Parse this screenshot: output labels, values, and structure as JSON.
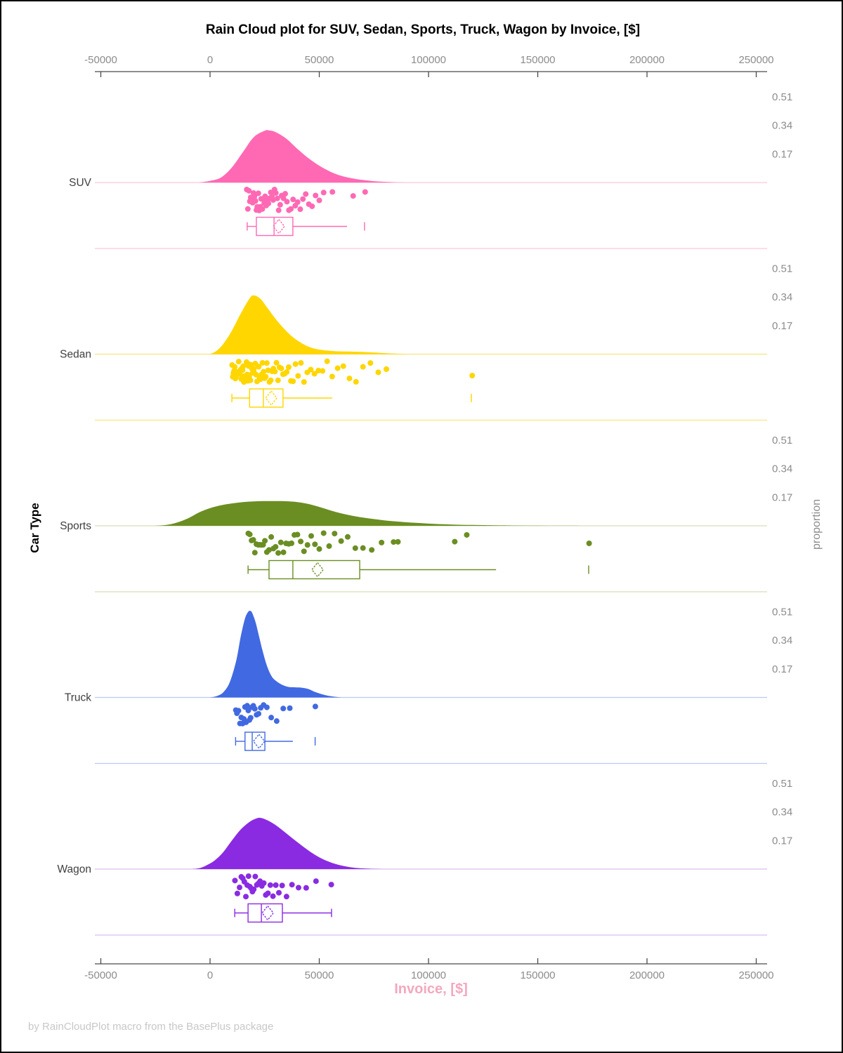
{
  "title": "Rain Cloud plot for SUV, Sedan, Sports, Truck, Wagon by Invoice, [$]",
  "footer": "by RainCloudPlot macro from the BasePlus package",
  "axes": {
    "x_label": "Invoice, [$]",
    "y_label_left": "Car Type",
    "y_label_right": "proportion"
  },
  "colors": {
    "title": "#000000",
    "x_label": "#f3a8be",
    "tick_label": "#8c8c8c",
    "axis_line": "#4a4a4a",
    "category_label": "#3f3f3f",
    "proportion_label": "#8c8c8c",
    "footer": "#c8c8c8"
  },
  "chart_data": {
    "type": "raincloud (half-violin density + jittered strip points + box plot per category)",
    "x_axis": {
      "ticks": [
        -50000,
        0,
        50000,
        100000,
        150000,
        200000,
        250000
      ],
      "range": [
        -52700,
        255000
      ]
    },
    "proportion_ticks": [
      0.51,
      0.34,
      0.17
    ],
    "categories": [
      "SUV",
      "Sedan",
      "Sports",
      "Truck",
      "Wagon"
    ],
    "series": [
      {
        "name": "SUV",
        "color": "#ff69b4",
        "light_color": "#f9c6de",
        "density": [
          [
            -5000,
            0
          ],
          [
            0,
            0.01
          ],
          [
            5000,
            0.03
          ],
          [
            10000,
            0.09
          ],
          [
            15000,
            0.18
          ],
          [
            20000,
            0.27
          ],
          [
            25000,
            0.308
          ],
          [
            27000,
            0.31
          ],
          [
            30000,
            0.3
          ],
          [
            35000,
            0.26
          ],
          [
            40000,
            0.2
          ],
          [
            45000,
            0.145
          ],
          [
            50000,
            0.1
          ],
          [
            55000,
            0.065
          ],
          [
            60000,
            0.04
          ],
          [
            65000,
            0.025
          ],
          [
            70000,
            0.015
          ],
          [
            75000,
            0.008
          ],
          [
            80000,
            0.004
          ],
          [
            85000,
            0.001
          ],
          [
            90000,
            0
          ]
        ],
        "box": {
          "min": 17000,
          "q1": 21200,
          "median": 29300,
          "mean": 31500,
          "q3": 37900,
          "max": 62700,
          "outliers": [
            70700
          ],
          "max_cap": false
        },
        "points": [
          16800,
          17300,
          17800,
          18200,
          18600,
          19100,
          19500,
          19900,
          20300,
          20800,
          21200,
          21600,
          22100,
          22500,
          23000,
          23400,
          23900,
          24300,
          24800,
          25200,
          25700,
          26200,
          26700,
          27200,
          27800,
          28300,
          28900,
          29500,
          30100,
          30800,
          31400,
          32100,
          32800,
          33600,
          34400,
          35200,
          36100,
          37000,
          38000,
          39000,
          40100,
          41300,
          42500,
          43800,
          45200,
          46700,
          48300,
          50000,
          52000,
          56000,
          65500,
          71000
        ]
      },
      {
        "name": "Sedan",
        "color": "#ffd600",
        "light_color": "#f6e385",
        "density": [
          [
            0,
            0
          ],
          [
            3000,
            0.02
          ],
          [
            6000,
            0.06
          ],
          [
            10000,
            0.14
          ],
          [
            14000,
            0.24
          ],
          [
            18000,
            0.33
          ],
          [
            20000,
            0.35
          ],
          [
            23000,
            0.33
          ],
          [
            26000,
            0.28
          ],
          [
            30000,
            0.21
          ],
          [
            34000,
            0.15
          ],
          [
            38000,
            0.1
          ],
          [
            42000,
            0.065
          ],
          [
            46000,
            0.04
          ],
          [
            50000,
            0.027
          ],
          [
            55000,
            0.02
          ],
          [
            60000,
            0.016
          ],
          [
            65000,
            0.015
          ],
          [
            70000,
            0.013
          ],
          [
            75000,
            0.01
          ],
          [
            80000,
            0.006
          ],
          [
            85000,
            0.003
          ],
          [
            90000,
            0
          ]
        ],
        "box": {
          "min": 10000,
          "q1": 18100,
          "median": 24400,
          "mean": 28000,
          "q3": 33400,
          "max": 55900,
          "outliers": [
            119600
          ],
          "max_cap": false
        },
        "points": [
          10100,
          10400,
          10700,
          11000,
          11300,
          11600,
          11900,
          12200,
          12500,
          12800,
          13100,
          13400,
          13700,
          14000,
          14300,
          14600,
          14900,
          15200,
          15500,
          15800,
          16100,
          16400,
          16700,
          17000,
          17300,
          17600,
          17900,
          18200,
          18500,
          18800,
          19100,
          19400,
          19700,
          20000,
          20300,
          20700,
          21100,
          21500,
          21900,
          22300,
          22700,
          23100,
          23500,
          24000,
          24500,
          25000,
          25500,
          26000,
          26600,
          27200,
          27800,
          28400,
          29000,
          29700,
          30400,
          31100,
          31800,
          32600,
          33400,
          34200,
          35100,
          36000,
          37000,
          38000,
          39100,
          40300,
          41600,
          43000,
          44500,
          46100,
          47800,
          49600,
          51500,
          53600,
          55900,
          58400,
          61000,
          63800,
          66800,
          70000,
          73400,
          77000,
          80700,
          120000
        ]
      },
      {
        "name": "Sports",
        "color": "#6b8e23",
        "light_color": "#d5dfb8",
        "density": [
          [
            -25000,
            0
          ],
          [
            -20000,
            0.005
          ],
          [
            -15000,
            0.02
          ],
          [
            -10000,
            0.045
          ],
          [
            -5000,
            0.08
          ],
          [
            0,
            0.105
          ],
          [
            5000,
            0.122
          ],
          [
            10000,
            0.133
          ],
          [
            15000,
            0.141
          ],
          [
            20000,
            0.145
          ],
          [
            25000,
            0.147
          ],
          [
            30000,
            0.147
          ],
          [
            35000,
            0.146
          ],
          [
            40000,
            0.141
          ],
          [
            45000,
            0.13
          ],
          [
            50000,
            0.112
          ],
          [
            55000,
            0.092
          ],
          [
            60000,
            0.074
          ],
          [
            65000,
            0.06
          ],
          [
            70000,
            0.049
          ],
          [
            75000,
            0.04
          ],
          [
            80000,
            0.032
          ],
          [
            85000,
            0.026
          ],
          [
            90000,
            0.021
          ],
          [
            95000,
            0.017
          ],
          [
            100000,
            0.013
          ],
          [
            105000,
            0.01
          ],
          [
            110000,
            0.008
          ],
          [
            115000,
            0.006
          ],
          [
            120000,
            0.005
          ],
          [
            125000,
            0.004
          ],
          [
            130000,
            0.003
          ],
          [
            140000,
            0.0015
          ],
          [
            150000,
            0.0008
          ],
          [
            160000,
            0.0003
          ],
          [
            170000,
            0
          ]
        ],
        "box": {
          "min": 17400,
          "q1": 27000,
          "median": 37900,
          "mean": 49200,
          "q3": 68500,
          "max": 130900,
          "outliers": [
            173300
          ],
          "max_cap": false
        },
        "points": [
          17500,
          18200,
          19000,
          19800,
          20500,
          21200,
          22000,
          22800,
          23500,
          24300,
          25100,
          26000,
          27000,
          28000,
          29000,
          30000,
          31200,
          32400,
          33600,
          34800,
          36000,
          37300,
          38600,
          40000,
          41500,
          43000,
          44600,
          46300,
          48000,
          50000,
          52000,
          54500,
          57000,
          60000,
          63000,
          66500,
          70000,
          74000,
          78500,
          84000,
          86000,
          112000,
          117500,
          173500
        ]
      },
      {
        "name": "Truck",
        "color": "#4169e1",
        "light_color": "#bccbf0",
        "density": [
          [
            0,
            0
          ],
          [
            3000,
            0.008
          ],
          [
            6000,
            0.03
          ],
          [
            9000,
            0.09
          ],
          [
            12000,
            0.22
          ],
          [
            14000,
            0.36
          ],
          [
            16000,
            0.47
          ],
          [
            17500,
            0.51
          ],
          [
            18300,
            0.515
          ],
          [
            19000,
            0.51
          ],
          [
            20000,
            0.48
          ],
          [
            21000,
            0.44
          ],
          [
            22500,
            0.36
          ],
          [
            24000,
            0.28
          ],
          [
            26000,
            0.19
          ],
          [
            28000,
            0.13
          ],
          [
            30000,
            0.1
          ],
          [
            33000,
            0.075
          ],
          [
            36000,
            0.062
          ],
          [
            39000,
            0.06
          ],
          [
            42000,
            0.058
          ],
          [
            45000,
            0.05
          ],
          [
            48000,
            0.033
          ],
          [
            51000,
            0.02
          ],
          [
            54000,
            0.01
          ],
          [
            57000,
            0.004
          ],
          [
            60000,
            0
          ]
        ],
        "box": {
          "min": 11700,
          "q1": 16000,
          "median": 19300,
          "mean": 22400,
          "q3": 25100,
          "max": 37900,
          "outliers": [
            48100
          ],
          "max_cap": false
        },
        "points": [
          11800,
          12300,
          13000,
          13700,
          14300,
          14900,
          15500,
          16000,
          16500,
          17000,
          17500,
          18000,
          18600,
          19200,
          19800,
          20500,
          21300,
          22200,
          23200,
          24500,
          26000,
          28000,
          30500,
          33500,
          36500,
          48200
        ]
      },
      {
        "name": "Wagon",
        "color": "#8a2be2",
        "light_color": "#d9bcf0",
        "density": [
          [
            -8000,
            0
          ],
          [
            -5000,
            0.005
          ],
          [
            -2000,
            0.02
          ],
          [
            2000,
            0.05
          ],
          [
            6000,
            0.1
          ],
          [
            10000,
            0.17
          ],
          [
            14000,
            0.235
          ],
          [
            18000,
            0.28
          ],
          [
            21000,
            0.3
          ],
          [
            23000,
            0.305
          ],
          [
            26000,
            0.292
          ],
          [
            30000,
            0.262
          ],
          [
            34000,
            0.222
          ],
          [
            38000,
            0.18
          ],
          [
            42000,
            0.14
          ],
          [
            46000,
            0.102
          ],
          [
            50000,
            0.07
          ],
          [
            54000,
            0.046
          ],
          [
            58000,
            0.028
          ],
          [
            62000,
            0.016
          ],
          [
            66000,
            0.008
          ],
          [
            70000,
            0.004
          ],
          [
            75000,
            0.001
          ],
          [
            80000,
            0
          ]
        ],
        "box": {
          "min": 11300,
          "q1": 17400,
          "median": 23500,
          "mean": 26400,
          "q3": 33100,
          "max": 55600,
          "outliers": [],
          "max_cap": true
        },
        "points": [
          11400,
          12500,
          13500,
          14300,
          15000,
          15700,
          16400,
          17000,
          17600,
          18200,
          18800,
          19400,
          20000,
          20700,
          21400,
          22100,
          22900,
          23700,
          24600,
          25500,
          26500,
          27600,
          28800,
          30100,
          31500,
          33000,
          35000,
          37500,
          40500,
          44000,
          48500,
          55500
        ]
      }
    ]
  }
}
